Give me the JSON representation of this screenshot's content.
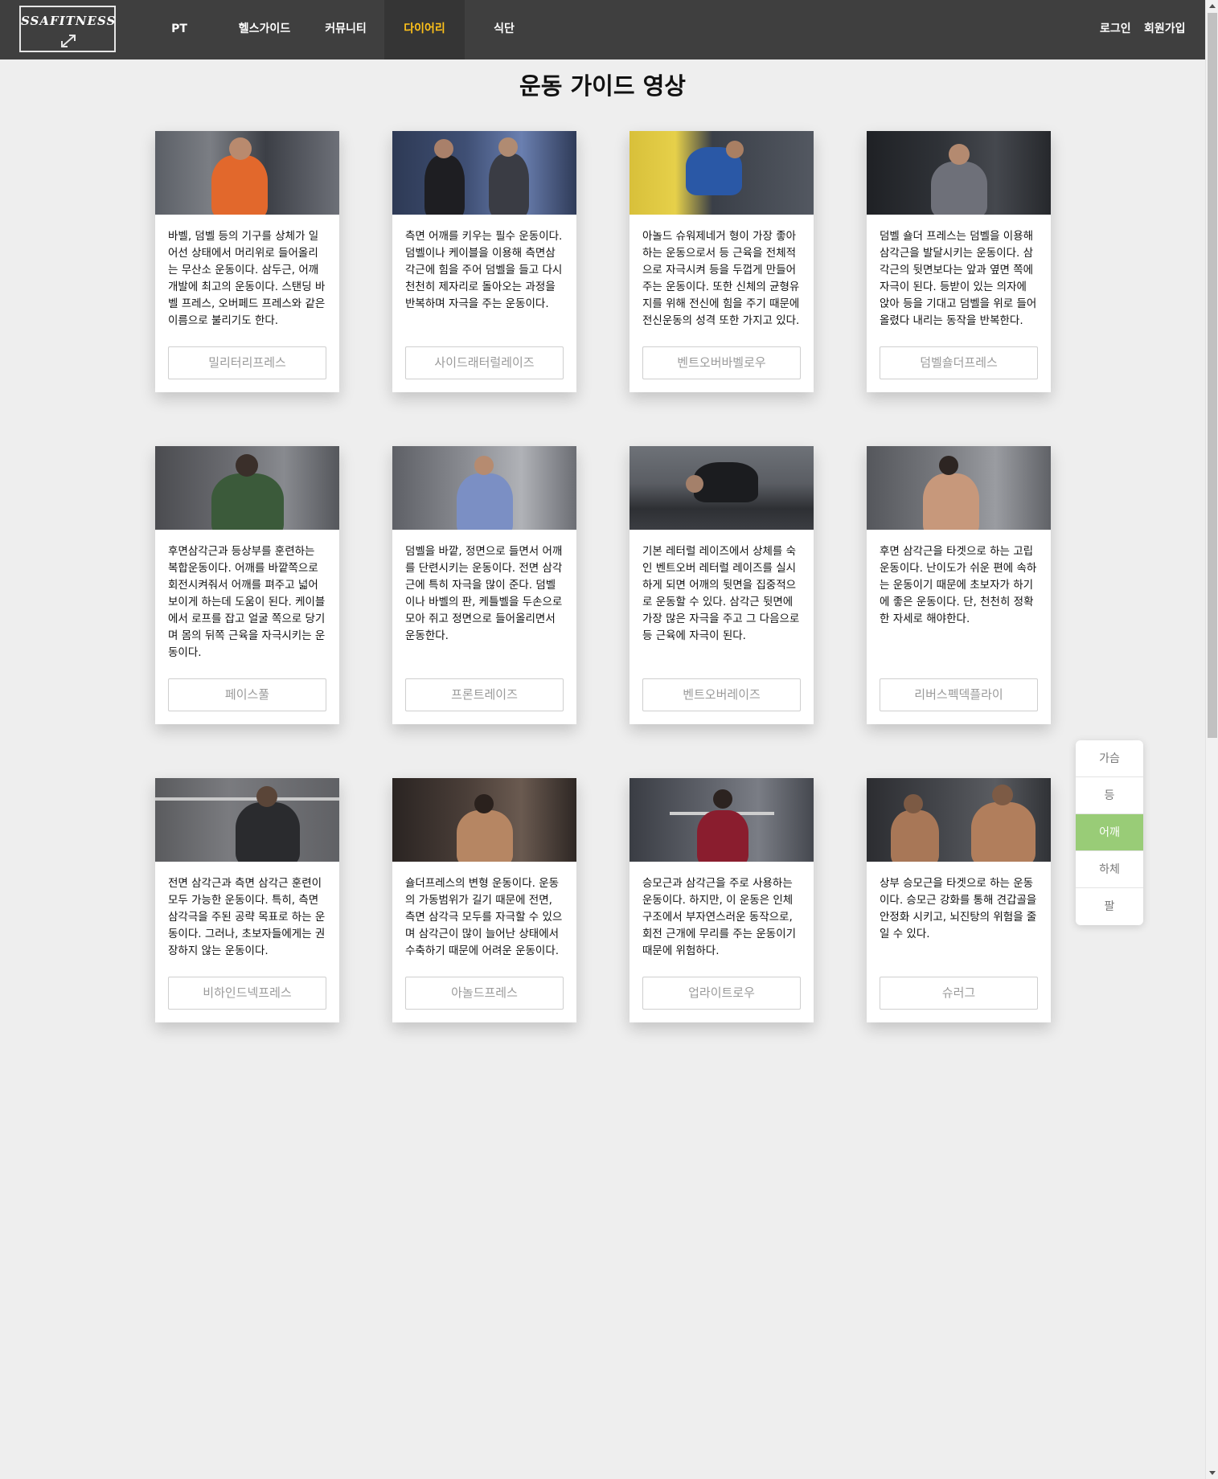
{
  "header": {
    "logo_text": "SSAFITNESS",
    "nav": [
      {
        "label": "PT",
        "active": false
      },
      {
        "label": "헬스가이드",
        "active": false
      },
      {
        "label": "커뮤니티",
        "active": false
      },
      {
        "label": "다이어리",
        "active": true
      },
      {
        "label": "식단",
        "active": false
      }
    ],
    "login_label": "로그인",
    "signup_label": "회원가입"
  },
  "page_title": "운동 가이드 영상",
  "cards": [
    {
      "desc": "바벨, 덤벨 등의 기구를 상체가 일어선 상태에서 머리위로 들어올리는 무산소 운동이다. 삼두근, 어깨 개발에 최고의 운동이다. 스탠딩 바벨 프레스, 오버페드 프레스와 같은 이름으로 불리기도 한다.",
      "button": "밀리터리프레스"
    },
    {
      "desc": "측면 어깨를 키우는 필수 운동이다. 덤벨이나 케이블을 이용해 측면삼각근에 힘을 주어 덤벨을 들고 다시 천천히 제자리로 돌아오는 과정을 반복하며 자극을 주는 운동이다.",
      "button": "사이드래터럴레이즈"
    },
    {
      "desc": "아놀드 슈워제네거 형이 가장 좋아하는 운동으로서 등 근육을 전체적으로 자극시켜 등을 두껍게 만들어주는 운동이다. 또한 신체의 균형유지를 위해 전신에 힘을 주기 때문에 전신운동의 성격 또한 가지고 있다.",
      "button": "벤트오버바벨로우"
    },
    {
      "desc": "덤벨 숄더 프레스는 덤벨을 이용해 삼각근을 발달시키는 운동이다. 삼각근의 뒷면보다는 앞과 옆면 쪽에 자극이 된다. 등받이 있는 의자에 앉아 등을 기대고 덤벨을 위로 들어 올렸다 내리는 동작을 반복한다.",
      "button": "덤벨숄더프레스"
    },
    {
      "desc": "후면삼각근과 등상부를 훈련하는 복합운동이다. 어깨를 바깥쪽으로 회전시켜줘서 어깨를 펴주고 넓어 보이게 하는데 도움이 된다. 케이블에서 로프를 잡고 얼굴 쪽으로 당기며 몸의 뒤쪽 근육을 자극시키는 운동이다.",
      "button": "페이스풀"
    },
    {
      "desc": "덤벨을 바깥, 정면으로 들면서 어깨를 단련시키는 운동이다. 전면 삼각근에 특히 자극을 많이 준다. 덤벨이나 바벨의 판, 케틀벨을 두손으로 모아 쥐고 정면으로 들어올리면서 운동한다.",
      "button": "프론트레이즈"
    },
    {
      "desc": "기본 레터럴 레이즈에서 상체를 숙인 벤트오버 레터럴 레이즈를 실시하게 되면 어깨의 뒷면을 집중적으로 운동할 수 있다. 삼각근 뒷면에 가장 많은 자극을 주고 그 다음으로 등 근육에 자극이 된다.",
      "button": "벤트오버레이즈"
    },
    {
      "desc": "후면 삼각근을 타겟으로 하는 고립운동이다. 난이도가 쉬운 편에 속하는 운동이기 때문에 초보자가 하기에 좋은 운동이다. 단, 천천히 정확한 자세로 해야한다.",
      "button": "리버스펙덱플라이"
    },
    {
      "desc": "전면 삼각근과 측면 삼각근 훈련이 모두 가능한 운동이다. 특히, 측면 삼각극을 주된 공략 목표로 하는 운동이다. 그러나, 초보자들에게는 권장하지 않는 운동이다.",
      "button": "비하인드넥프레스"
    },
    {
      "desc": "숄더프레스의 변형 운동이다. 운동의 가동범위가 길기 때문에 전면, 측면 삼각극 모두를 자극할 수 있으며 삼각근이 많이 늘어난 상태에서 수축하기 때문에 어려운 운동이다.",
      "button": "아놀드프레스"
    },
    {
      "desc": "승모근과 삼각근을 주로 사용하는 운동이다. 하지만, 이 운동은 인체 구조에서 부자연스러운 동작으로, 회전 근개에 무리를 주는 운동이기 때문에 위험하다.",
      "button": "업라이트로우"
    },
    {
      "desc": "상부 승모근을 타겟으로 하는 운동이다. 승모근 강화를 통해 견갑골을 안정화 시키고, 뇌진탕의 위험을 줄일 수 있다.",
      "button": "슈러그"
    }
  ],
  "side_menu": [
    {
      "label": "가슴",
      "active": false
    },
    {
      "label": "등",
      "active": false
    },
    {
      "label": "어깨",
      "active": true
    },
    {
      "label": "하체",
      "active": false
    },
    {
      "label": "팔",
      "active": false
    }
  ],
  "colors": {
    "header_bg": "#3f3f3f",
    "nav_active_text": "#ffc21a",
    "side_active_bg": "#99cc77",
    "page_bg": "#eeeeee"
  }
}
